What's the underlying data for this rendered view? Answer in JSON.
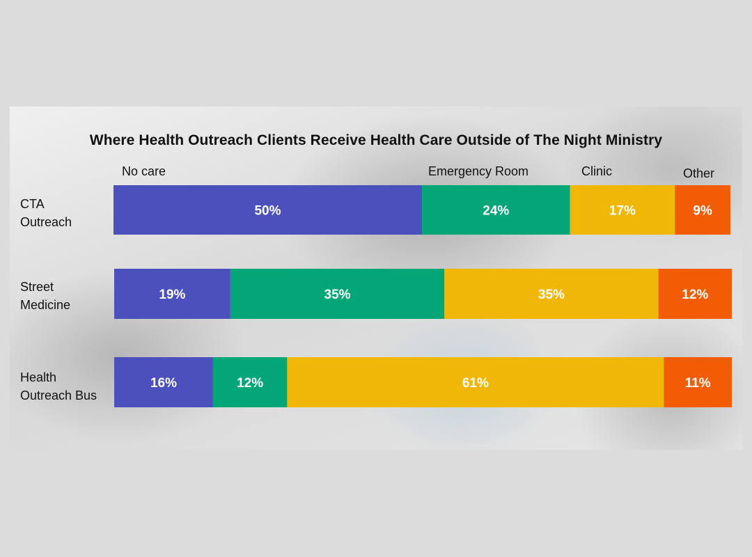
{
  "chart_data": {
    "type": "bar",
    "orientation": "horizontal",
    "stacked": true,
    "title": "Where Health Outreach Clients Receive Health Care Outside of The Night Ministry",
    "xlabel": "",
    "ylabel": "",
    "xlim": [
      0,
      100
    ],
    "grid": false,
    "legend_placement": "top",
    "categories": [
      {
        "line1": "CTA",
        "line2": "Outreach"
      },
      {
        "line1": "Street",
        "line2": "Medicine"
      },
      {
        "line1": "Health",
        "line2": "Outreach Bus"
      }
    ],
    "series": [
      {
        "name": "No care",
        "color": "#4b50bd",
        "values": [
          50,
          19,
          16
        ],
        "labels": [
          "50%",
          "19%",
          "16%"
        ]
      },
      {
        "name": "Emergency Room",
        "color": "#03a677",
        "values": [
          24,
          35,
          12
        ],
        "labels": [
          "24%",
          "35%",
          "12%"
        ]
      },
      {
        "name": "Clinic",
        "color": "#f1b707",
        "values": [
          17,
          35,
          61
        ],
        "labels": [
          "17%",
          "35%",
          "61%"
        ]
      },
      {
        "name": "Other",
        "color": "#f15c05",
        "values": [
          9,
          12,
          11
        ],
        "labels": [
          "9%",
          "12%",
          "11%"
        ]
      }
    ]
  }
}
